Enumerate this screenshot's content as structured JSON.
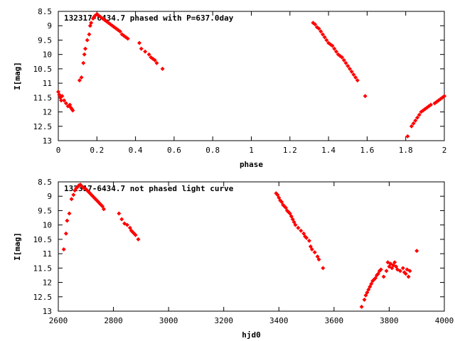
{
  "chart_data": [
    {
      "type": "scatter",
      "title": "132317-6434.7 phased with P=637.0day",
      "xlabel": "phase",
      "ylabel": "I[mag]",
      "xlim": [
        0,
        2
      ],
      "ylim": [
        13,
        8.5
      ],
      "y_reversed": true,
      "xticks": [
        "0",
        "0.2",
        "0.4",
        "0.6",
        "0.8",
        "1",
        "1.2",
        "1.4",
        "1.6",
        "1.8",
        "2"
      ],
      "yticks": [
        "8.5",
        "9",
        "9.5",
        "10",
        "10.5",
        "11",
        "11.5",
        "12",
        "12.5",
        "13"
      ],
      "grid": false,
      "marker_color": "#ff0000",
      "series": [
        {
          "x": [
            0.0,
            0.005,
            0.01,
            0.015,
            0.02,
            0.03,
            0.04,
            0.05,
            0.06,
            0.065,
            0.07,
            0.075,
            0.11,
            0.12,
            0.13,
            0.135,
            0.14,
            0.15,
            0.16,
            0.165,
            0.17,
            0.18,
            0.185,
            0.19,
            0.2,
            0.205,
            0.21,
            0.22,
            0.23,
            0.24,
            0.25,
            0.26,
            0.27,
            0.28,
            0.29,
            0.3,
            0.31,
            0.32,
            0.33,
            0.34,
            0.35,
            0.36,
            0.42,
            0.43,
            0.45,
            0.47,
            0.48,
            0.49,
            0.5,
            0.51,
            0.54,
            1.32,
            1.33,
            1.34,
            1.35,
            1.36,
            1.37,
            1.38,
            1.39,
            1.4,
            1.41,
            1.42,
            1.43,
            1.44,
            1.45,
            1.46,
            1.47,
            1.48,
            1.49,
            1.5,
            1.51,
            1.52,
            1.53,
            1.54,
            1.55,
            1.59,
            1.81,
            1.83,
            1.84,
            1.85,
            1.86,
            1.87,
            1.88,
            1.89,
            1.9,
            1.91,
            1.92,
            1.93,
            1.95,
            1.96,
            1.97,
            1.98,
            1.99,
            2.0
          ],
          "y": [
            11.3,
            11.4,
            11.5,
            11.6,
            11.45,
            11.6,
            11.7,
            11.8,
            11.75,
            11.85,
            11.9,
            11.95,
            10.9,
            10.8,
            10.3,
            10.0,
            9.8,
            9.5,
            9.3,
            9.0,
            8.9,
            8.75,
            8.7,
            8.65,
            8.6,
            8.62,
            8.65,
            8.7,
            8.75,
            8.8,
            8.85,
            8.9,
            8.95,
            9.0,
            9.05,
            9.1,
            9.15,
            9.2,
            9.3,
            9.35,
            9.4,
            9.45,
            9.6,
            9.8,
            9.9,
            10.0,
            10.1,
            10.15,
            10.2,
            10.3,
            10.5,
            8.9,
            8.95,
            9.05,
            9.1,
            9.2,
            9.3,
            9.4,
            9.5,
            9.6,
            9.65,
            9.7,
            9.8,
            9.9,
            10.0,
            10.05,
            10.1,
            10.2,
            10.3,
            10.4,
            10.5,
            10.6,
            10.7,
            10.8,
            10.9,
            11.45,
            12.85,
            12.5,
            12.4,
            12.3,
            12.2,
            12.1,
            12.0,
            11.95,
            11.9,
            11.85,
            11.8,
            11.75,
            11.7,
            11.65,
            11.6,
            11.55,
            11.5,
            11.45
          ]
        }
      ]
    },
    {
      "type": "scatter",
      "title": "132317-6434.7 not phased light curve",
      "xlabel": "hjd0",
      "ylabel": "I[mag]",
      "xlim": [
        2600,
        4000
      ],
      "ylim": [
        13,
        8.5
      ],
      "y_reversed": true,
      "xticks": [
        "2600",
        "2800",
        "3000",
        "3200",
        "3400",
        "3600",
        "3800",
        "4000"
      ],
      "yticks": [
        "8.5",
        "9",
        "9.5",
        "10",
        "10.5",
        "11",
        "11.5",
        "12",
        "12.5",
        "13"
      ],
      "grid": false,
      "marker_color": "#ff0000",
      "series": [
        {
          "x": [
            2620,
            2628,
            2632,
            2640,
            2648,
            2655,
            2660,
            2665,
            2670,
            2675,
            2680,
            2685,
            2690,
            2695,
            2700,
            2705,
            2710,
            2715,
            2720,
            2725,
            2730,
            2735,
            2740,
            2745,
            2750,
            2755,
            2760,
            2765,
            2820,
            2830,
            2840,
            2850,
            2860,
            2865,
            2870,
            2875,
            2880,
            2890,
            3390,
            3395,
            3400,
            3405,
            3410,
            3415,
            3420,
            3425,
            3430,
            3435,
            3440,
            3445,
            3450,
            3455,
            3460,
            3470,
            3480,
            3490,
            3495,
            3500,
            3510,
            3515,
            3520,
            3530,
            3540,
            3545,
            3560,
            3700,
            3710,
            3715,
            3720,
            3725,
            3730,
            3735,
            3740,
            3745,
            3750,
            3755,
            3760,
            3765,
            3770,
            3780,
            3790,
            3795,
            3800,
            3805,
            3810,
            3815,
            3820,
            3825,
            3830,
            3840,
            3850,
            3855,
            3860,
            3865,
            3870,
            3875,
            3900
          ],
          "y": [
            10.85,
            10.3,
            9.85,
            9.6,
            9.1,
            8.95,
            8.8,
            8.72,
            8.68,
            8.62,
            8.6,
            8.65,
            8.7,
            8.72,
            8.75,
            8.8,
            8.85,
            8.9,
            8.95,
            9.0,
            9.05,
            9.1,
            9.15,
            9.2,
            9.25,
            9.3,
            9.35,
            9.45,
            9.6,
            9.8,
            9.95,
            10.0,
            10.1,
            10.2,
            10.25,
            10.3,
            10.35,
            10.5,
            8.9,
            8.95,
            9.05,
            9.15,
            9.2,
            9.3,
            9.35,
            9.4,
            9.5,
            9.55,
            9.6,
            9.7,
            9.8,
            9.9,
            10.0,
            10.1,
            10.2,
            10.3,
            10.4,
            10.45,
            10.55,
            10.75,
            10.85,
            10.95,
            11.1,
            11.2,
            11.5,
            12.85,
            12.6,
            12.45,
            12.35,
            12.25,
            12.15,
            12.05,
            11.95,
            11.9,
            11.85,
            11.75,
            11.7,
            11.6,
            11.55,
            11.8,
            11.6,
            11.3,
            11.45,
            11.35,
            11.5,
            11.4,
            11.3,
            11.45,
            11.55,
            11.6,
            11.5,
            11.65,
            11.7,
            11.55,
            11.8,
            11.6,
            10.9
          ]
        }
      ]
    }
  ]
}
